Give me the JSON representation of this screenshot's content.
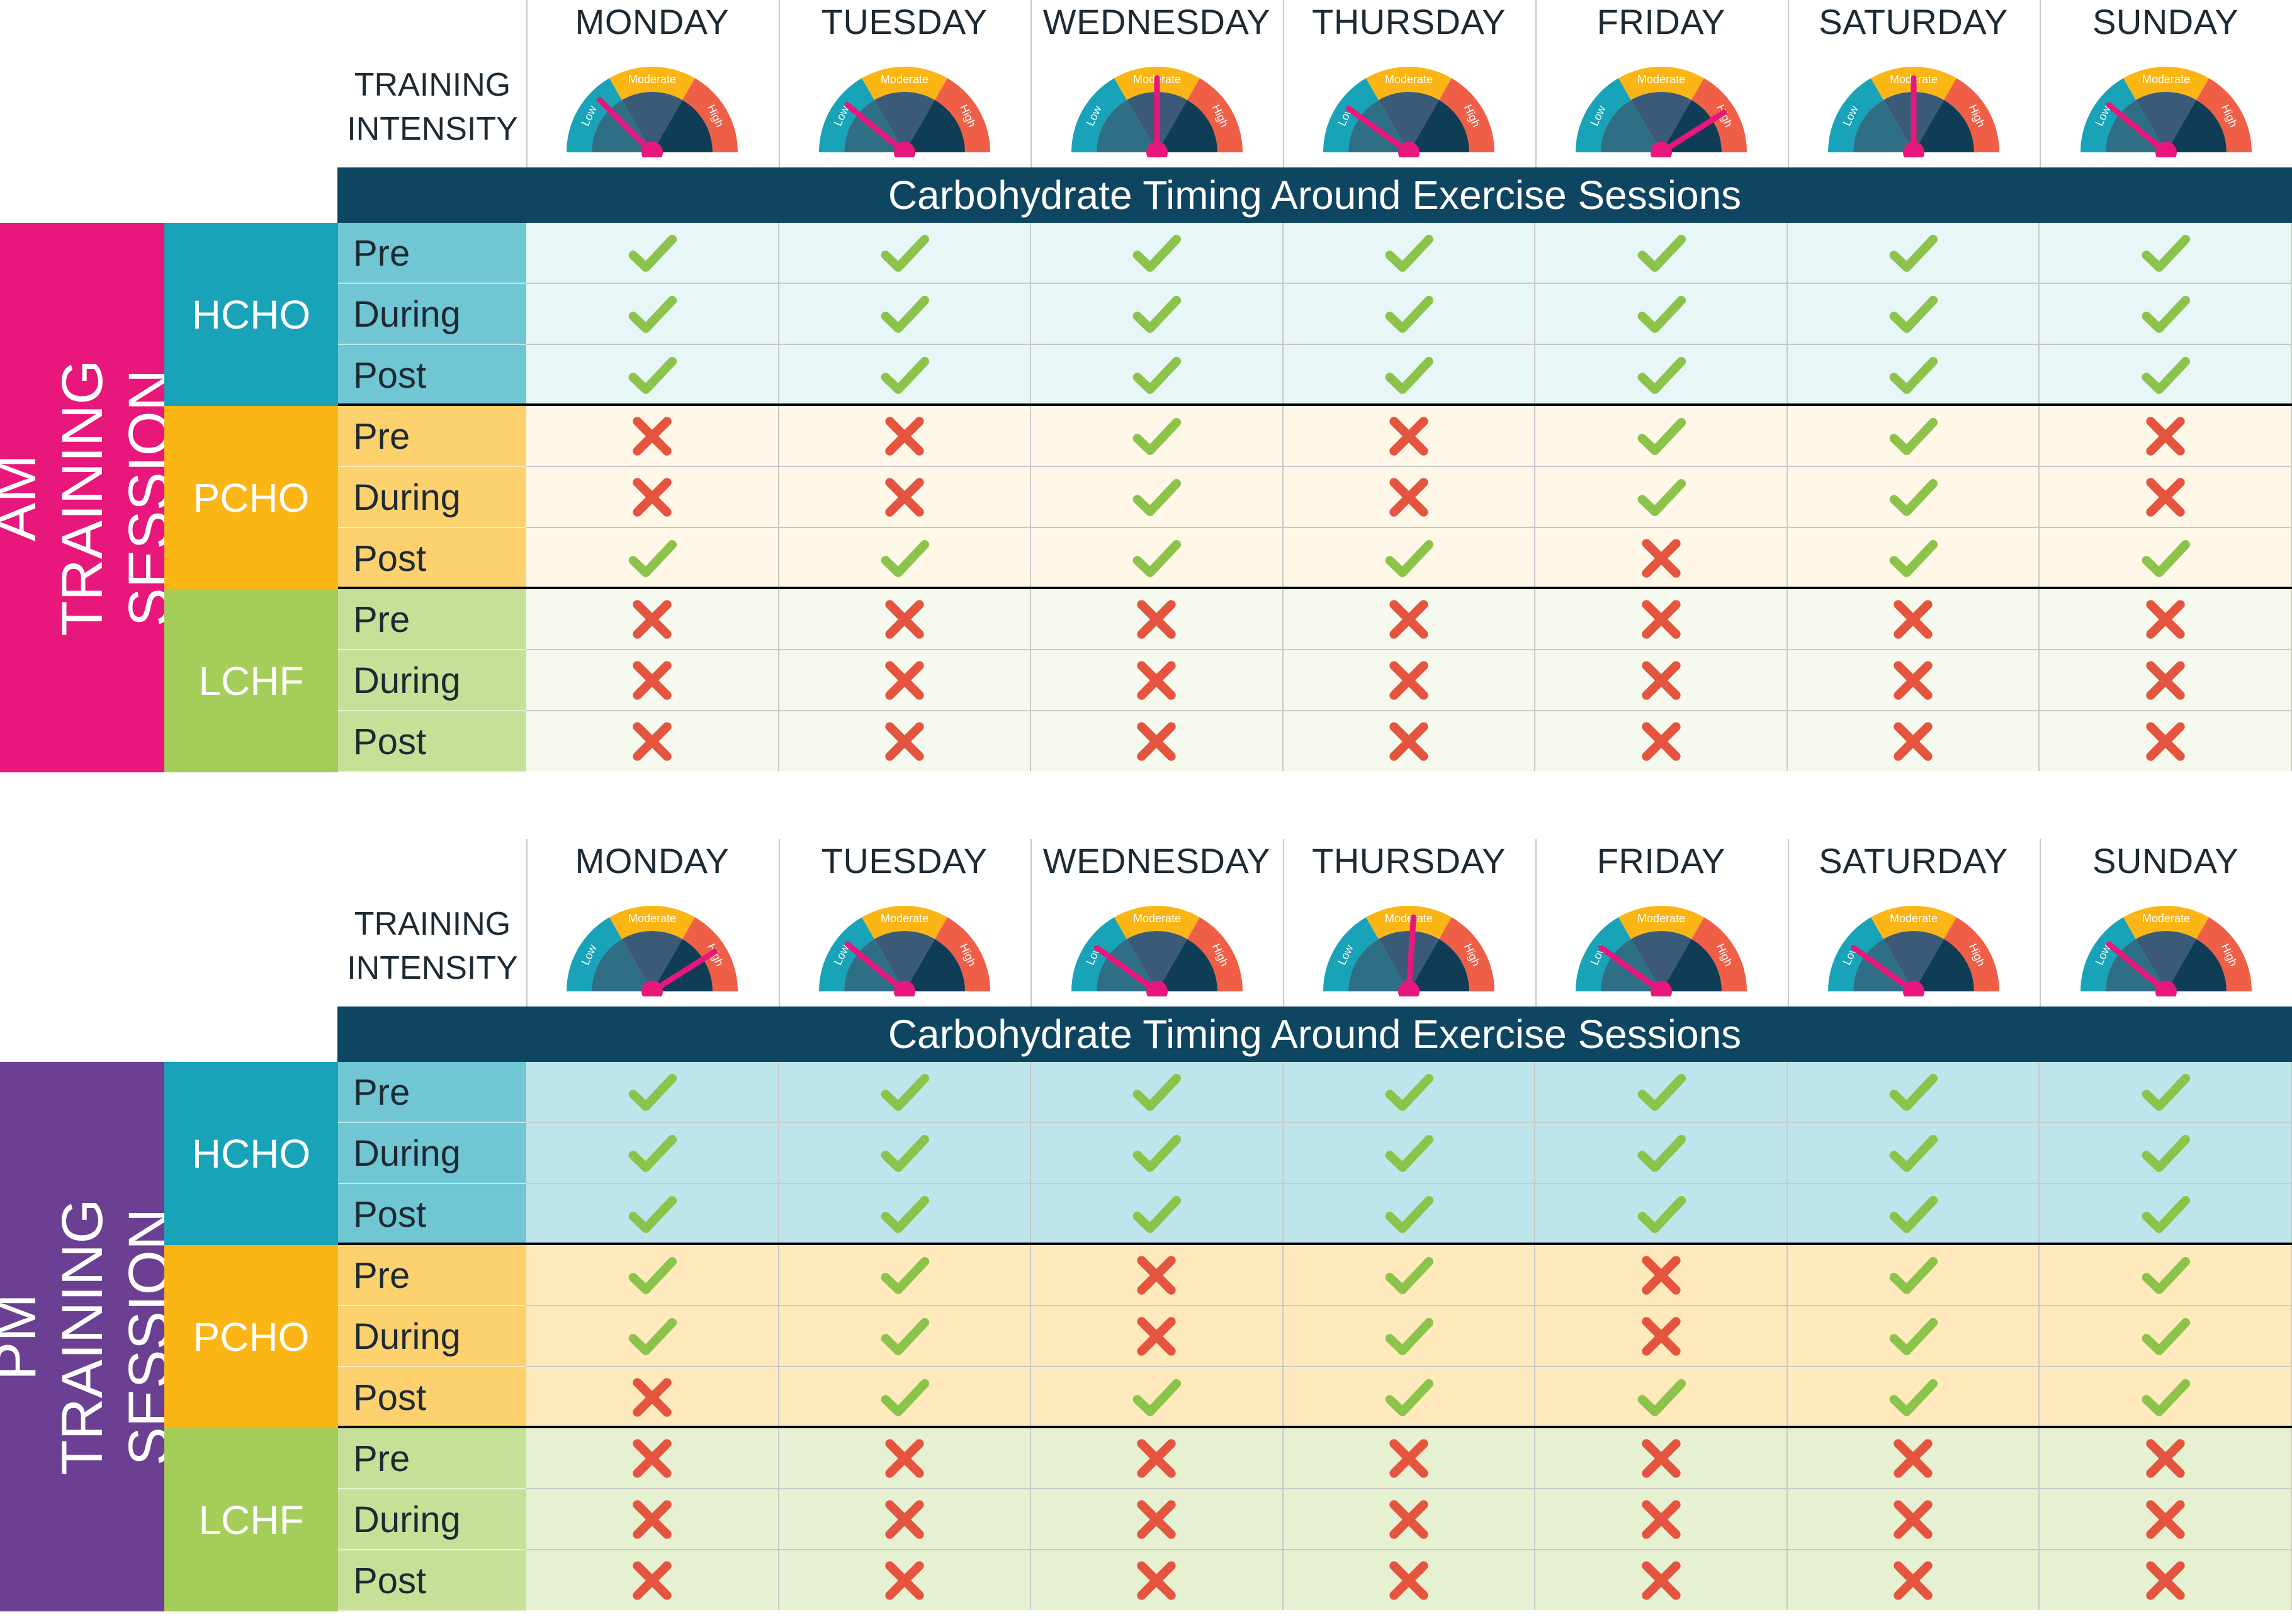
{
  "days": [
    "MONDAY",
    "TUESDAY",
    "WEDNESDAY",
    "THURSDAY",
    "FRIDAY",
    "SATURDAY",
    "SUNDAY"
  ],
  "intensity_label": "TRAINING INTENSITY",
  "gauge_text": {
    "low": "Low",
    "moderate": "Moderate",
    "high": "High"
  },
  "banner": "Carbohydrate Timing Around Exercise Sessions",
  "phases": [
    "Pre",
    "During",
    "Post"
  ],
  "colors": {
    "am_session": "#e8177b",
    "pm_session": "#6b3f91",
    "hcho": "#18a3b8",
    "pcho": "#fbb515",
    "lcho": "#a4cd59",
    "gauge_low": "#18a3b8",
    "gauge_moderate": "#fbb515",
    "gauge_high": "#ef5f47",
    "needle": "#e8177b",
    "check": "#8cc34b",
    "cross": "#e5543e",
    "banner": "#0e4560"
  },
  "am": {
    "session_label": "AM TRAINING SESSION",
    "intensity_levels": [
      0.25,
      0.22,
      0.5,
      0.2,
      0.82,
      0.5,
      0.22
    ],
    "groups": [
      {
        "label": "HCHO",
        "rows": [
          [
            1,
            1,
            1,
            1,
            1,
            1,
            1
          ],
          [
            1,
            1,
            1,
            1,
            1,
            1,
            1
          ],
          [
            1,
            1,
            1,
            1,
            1,
            1,
            1
          ]
        ]
      },
      {
        "label": "PCHO",
        "rows": [
          [
            0,
            0,
            1,
            0,
            1,
            1,
            0
          ],
          [
            0,
            0,
            1,
            0,
            1,
            1,
            0
          ],
          [
            1,
            1,
            1,
            1,
            0,
            1,
            1
          ]
        ]
      },
      {
        "label": "LCHF",
        "rows": [
          [
            0,
            0,
            0,
            0,
            0,
            0,
            0
          ],
          [
            0,
            0,
            0,
            0,
            0,
            0,
            0
          ],
          [
            0,
            0,
            0,
            0,
            0,
            0,
            0
          ]
        ]
      }
    ]
  },
  "pm": {
    "session_label": "PM TRAINING SESSION",
    "intensity_levels": [
      0.82,
      0.22,
      0.2,
      0.52,
      0.2,
      0.2,
      0.22
    ],
    "groups": [
      {
        "label": "HCHO",
        "rows": [
          [
            1,
            1,
            1,
            1,
            1,
            1,
            1
          ],
          [
            1,
            1,
            1,
            1,
            1,
            1,
            1
          ],
          [
            1,
            1,
            1,
            1,
            1,
            1,
            1
          ]
        ]
      },
      {
        "label": "PCHO",
        "rows": [
          [
            1,
            1,
            0,
            1,
            0,
            1,
            1
          ],
          [
            1,
            1,
            0,
            1,
            0,
            1,
            1
          ],
          [
            0,
            1,
            1,
            1,
            1,
            1,
            1
          ]
        ]
      },
      {
        "label": "LCHF",
        "rows": [
          [
            0,
            0,
            0,
            0,
            0,
            0,
            0
          ],
          [
            0,
            0,
            0,
            0,
            0,
            0,
            0
          ],
          [
            0,
            0,
            0,
            0,
            0,
            0,
            0
          ]
        ]
      }
    ]
  }
}
